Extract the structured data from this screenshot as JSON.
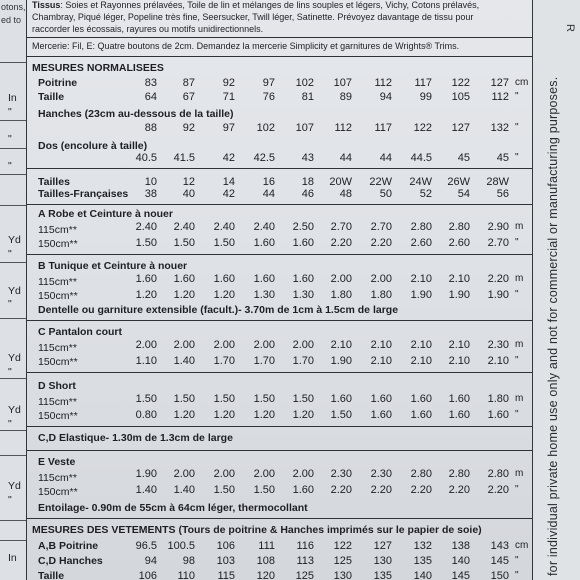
{
  "left_column": {
    "fragments": [
      "otons,",
      "ed to"
    ],
    "units": [
      {
        "label": "In",
        "y": 92
      },
      {
        "label": "\"",
        "y": 106
      },
      {
        "label": "\"",
        "y": 133
      },
      {
        "label": "\"",
        "y": 160
      },
      {
        "label": "Yd",
        "y": 234
      },
      {
        "label": "\"",
        "y": 248
      },
      {
        "label": "Yd",
        "y": 285
      },
      {
        "label": "\"",
        "y": 298
      },
      {
        "label": "Yd",
        "y": 352
      },
      {
        "label": "\"",
        "y": 366
      },
      {
        "label": "Yd",
        "y": 404
      },
      {
        "label": "\"",
        "y": 418
      },
      {
        "label": "Yd",
        "y": 480
      },
      {
        "label": "\"",
        "y": 494
      },
      {
        "label": "In",
        "y": 552
      }
    ]
  },
  "right_margin_text": "for individual private home use only and not for commercial or manufacturing purposes.",
  "edge_fragment": "R",
  "tissus_line1": "Tissus: Soies et Rayonnes prélavées, Toile de lin et mélanges de lins souples et légers, Vichy, Cotons prélavés,",
  "tissus_line2": "Chambray, Piqué léger, Popeline très fine, Seersucker, Twill léger, Satinette. Prévoyez davantage de tissu pour",
  "tissus_line3": "raccorder les écossais, rayures ou motifs unidirectionnels.",
  "mercerie": "Mercerie: Fil, E: Quatre boutons de 2cm. Demandez la mercerie Simplicity et garnitures de Wrights® Trims.",
  "mesures_title": "MESURES NORMALISEES",
  "poitrine": {
    "label": "Poitrine",
    "values": [
      "83",
      "87",
      "92",
      "97",
      "102",
      "107",
      "112",
      "117",
      "122",
      "127"
    ],
    "unit": "cm"
  },
  "taille": {
    "label": "Taille",
    "values": [
      "64",
      "67",
      "71",
      "76",
      "81",
      "89",
      "94",
      "99",
      "105",
      "112"
    ],
    "unit": "\""
  },
  "hanches": {
    "label": "Hanches (23cm au-dessous de la taille)",
    "values": [
      "88",
      "92",
      "97",
      "102",
      "107",
      "112",
      "117",
      "122",
      "127",
      "132"
    ],
    "unit": "\""
  },
  "dos": {
    "label": "Dos (encolure à taille)",
    "values": [
      "40.5",
      "41.5",
      "42",
      "42.5",
      "43",
      "44",
      "44",
      "44.5",
      "45",
      "45"
    ],
    "unit": "\""
  },
  "tailles": {
    "label": "Tailles",
    "values": [
      "10",
      "12",
      "14",
      "16",
      "18",
      "20W",
      "22W",
      "24W",
      "26W",
      "28W"
    ]
  },
  "tailles_fr": {
    "label": "Tailles-Françaises",
    "values": [
      "38",
      "40",
      "42",
      "44",
      "46",
      "48",
      "50",
      "52",
      "54",
      "56"
    ]
  },
  "sections": [
    {
      "title": "A Robe et Ceinture à nouer",
      "rows": [
        {
          "label": "115cm**",
          "values": [
            "2.40",
            "2.40",
            "2.40",
            "2.40",
            "2.50",
            "2.70",
            "2.70",
            "2.80",
            "2.80",
            "2.90"
          ],
          "unit": "m"
        },
        {
          "label": "150cm**",
          "values": [
            "1.50",
            "1.50",
            "1.50",
            "1.60",
            "1.60",
            "2.20",
            "2.20",
            "2.60",
            "2.60",
            "2.70"
          ],
          "unit": "\""
        }
      ]
    },
    {
      "title": "B Tunique et Ceinture à nouer",
      "rows": [
        {
          "label": "115cm**",
          "values": [
            "1.60",
            "1.60",
            "1.60",
            "1.60",
            "1.60",
            "2.00",
            "2.00",
            "2.10",
            "2.10",
            "2.20"
          ],
          "unit": "m"
        },
        {
          "label": "150cm**",
          "values": [
            "1.20",
            "1.20",
            "1.20",
            "1.30",
            "1.30",
            "1.80",
            "1.80",
            "1.90",
            "1.90",
            "1.90"
          ],
          "unit": "\""
        }
      ],
      "note": "Dentelle ou garniture extensible (facult.)- 3.70m de 1cm à 1.5cm de large"
    },
    {
      "title": "C Pantalon court",
      "rows": [
        {
          "label": "115cm**",
          "values": [
            "2.00",
            "2.00",
            "2.00",
            "2.00",
            "2.00",
            "2.10",
            "2.10",
            "2.10",
            "2.10",
            "2.30"
          ],
          "unit": "m"
        },
        {
          "label": "150cm**",
          "values": [
            "1.10",
            "1.40",
            "1.70",
            "1.70",
            "1.70",
            "1.90",
            "2.10",
            "2.10",
            "2.10",
            "2.10"
          ],
          "unit": "\""
        }
      ]
    },
    {
      "title": "D Short",
      "rows": [
        {
          "label": "115cm**",
          "values": [
            "1.50",
            "1.50",
            "1.50",
            "1.50",
            "1.50",
            "1.60",
            "1.60",
            "1.60",
            "1.60",
            "1.80"
          ],
          "unit": "m"
        },
        {
          "label": "150cm**",
          "values": [
            "0.80",
            "1.20",
            "1.20",
            "1.20",
            "1.20",
            "1.50",
            "1.60",
            "1.60",
            "1.60",
            "1.60"
          ],
          "unit": "\""
        }
      ]
    }
  ],
  "elastique": "C,D Elastique- 1.30m de 1.3cm de large",
  "veste": {
    "title": "E Veste",
    "rows": [
      {
        "label": "115cm**",
        "values": [
          "1.90",
          "2.00",
          "2.00",
          "2.00",
          "2.00",
          "2.30",
          "2.30",
          "2.80",
          "2.80",
          "2.80"
        ],
        "unit": "m"
      },
      {
        "label": "150cm**",
        "values": [
          "1.40",
          "1.40",
          "1.50",
          "1.50",
          "1.60",
          "2.20",
          "2.20",
          "2.20",
          "2.20",
          "2.20"
        ],
        "unit": "\""
      }
    ],
    "note": "Entoilage- 0.90m de 55cm à 64cm léger, thermocollant"
  },
  "vetements_title": "MESURES DES VETEMENTS (Tours de poitrine & Hanches imprimés sur le papier de soie)",
  "vetements_rows": [
    {
      "label": "A,B Poitrine",
      "values": [
        "96.5",
        "100.5",
        "106",
        "111",
        "116",
        "122",
        "127",
        "132",
        "138",
        "143"
      ],
      "unit": "cm"
    },
    {
      "label": "C,D Hanches",
      "values": [
        "94",
        "98",
        "103",
        "108",
        "113",
        "125",
        "130",
        "135",
        "140",
        "145"
      ],
      "unit": "\""
    },
    {
      "label": "Taille",
      "values": [
        "106",
        "110",
        "115",
        "120",
        "125",
        "130",
        "135",
        "140",
        "145",
        "150"
      ],
      "unit": "\""
    }
  ]
}
